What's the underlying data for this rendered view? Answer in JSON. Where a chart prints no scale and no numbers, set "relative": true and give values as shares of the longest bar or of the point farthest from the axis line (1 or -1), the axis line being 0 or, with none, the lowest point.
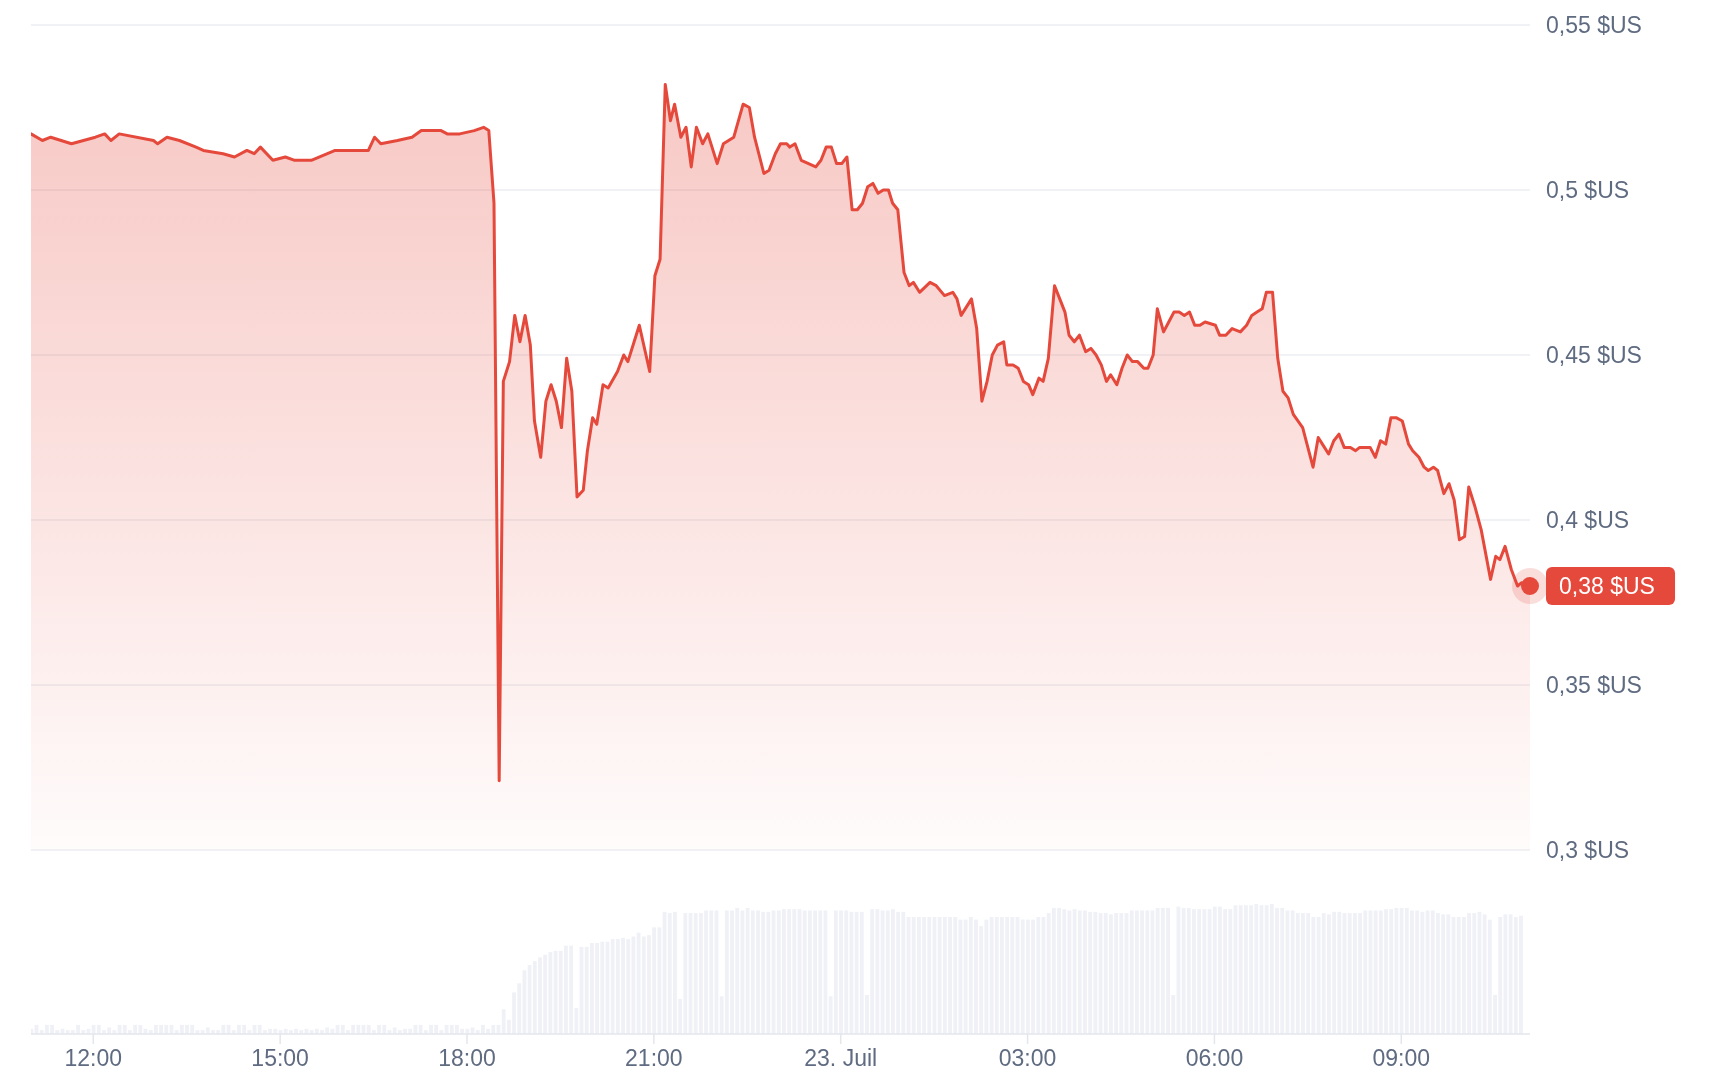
{
  "chart_data": [
    {
      "type": "area",
      "color": "#e5493c",
      "grid": "y",
      "tick_labels": "y",
      "xlim": [
        "--07-22T11:00",
        "--07-23T11:04"
      ],
      "ylim": [
        0.3,
        0.55
      ],
      "yticks": [
        {
          "value": 0.3,
          "label": "0,3 $US"
        },
        {
          "value": 0.35,
          "label": "0,35 $US"
        },
        {
          "value": 0.4,
          "label": "0,4 $US"
        },
        {
          "value": 0.45,
          "label": "0,45 $US"
        },
        {
          "value": 0.5,
          "label": "0,5 $US"
        },
        {
          "value": 0.55,
          "label": "0,55 $US"
        }
      ],
      "annotations": [
        {
          "text": "0,38 $US",
          "x": "--07-23T11:04",
          "y": 0.38
        }
      ],
      "x": [
        "--07-22T11:00",
        "--07-22T11:11",
        "--07-22T11:19",
        "--07-22T11:39",
        "--07-22T12:02",
        "--07-22T12:11",
        "--07-22T12:17",
        "--07-22T12:25",
        "--07-22T12:58",
        "--07-22T13:02",
        "--07-22T13:11",
        "--07-22T13:23",
        "--07-22T13:39",
        "--07-22T13:46",
        "--07-22T14:05",
        "--07-22T14:16",
        "--07-22T14:28",
        "--07-22T14:35",
        "--07-22T14:41",
        "--07-22T14:53",
        "--07-22T15:05",
        "--07-22T15:14",
        "--07-22T15:30",
        "--07-22T15:53",
        "--07-22T16:25",
        "--07-22T16:31",
        "--07-22T16:37",
        "--07-22T16:53",
        "--07-22T17:07",
        "--07-22T17:16",
        "--07-22T17:25",
        "--07-22T17:35",
        "--07-22T17:41",
        "--07-22T17:53",
        "--07-22T18:07",
        "--07-22T18:16",
        "--07-22T18:21",
        "--07-22T18:26",
        "--07-22T18:31",
        "--07-22T18:35",
        "--07-22T18:41",
        "--07-22T18:46",
        "--07-22T18:51",
        "--07-22T18:56",
        "--07-22T19:01",
        "--07-22T19:05",
        "--07-22T19:11",
        "--07-22T19:16",
        "--07-22T19:21",
        "--07-22T19:26",
        "--07-22T19:31",
        "--07-22T19:36",
        "--07-22T19:41",
        "--07-22T19:46",
        "--07-22T19:52",
        "--07-22T19:56",
        "--07-22T20:01",
        "--07-22T20:05",
        "--07-22T20:11",
        "--07-22T20:16",
        "--07-22T20:25",
        "--07-22T20:31",
        "--07-22T20:35",
        "--07-22T20:41",
        "--07-22T20:46",
        "--07-22T20:56",
        "--07-22T21:01",
        "--07-22T21:06",
        "--07-22T21:11",
        "--07-22T21:16",
        "--07-22T21:20",
        "--07-22T21:26",
        "--07-22T21:31",
        "--07-22T21:36",
        "--07-22T21:41",
        "--07-22T21:47",
        "--07-22T21:52",
        "--07-22T22:01",
        "--07-22T22:07",
        "--07-22T22:12",
        "--07-22T22:17",
        "--07-22T22:26",
        "--07-22T22:32",
        "--07-22T22:37",
        "--07-22T22:46",
        "--07-22T22:51",
        "--07-22T22:57",
        "--07-22T23:02",
        "--07-22T23:08",
        "--07-22T23:11",
        "--07-22T23:16",
        "--07-22T23:22",
        "--07-22T23:29",
        "--07-22T23:36",
        "--07-22T23:41",
        "--07-22T23:46",
        "--07-22T23:51",
        "--07-22T23:56",
        "--07-23T00:01",
        "--07-23T00:06",
        "--07-23T00:11",
        "--07-23T00:16",
        "--07-23T00:21",
        "--07-23T00:26",
        "--07-23T00:31",
        "--07-23T00:36",
        "--07-23T00:41",
        "--07-23T00:46",
        "--07-23T00:50",
        "--07-23T00:55",
        "--07-23T01:01",
        "--07-23T01:06",
        "--07-23T01:10",
        "--07-23T01:16",
        "--07-23T01:26",
        "--07-23T01:32",
        "--07-23T01:40",
        "--07-23T01:48",
        "--07-23T01:52",
        "--07-23T01:56",
        "--07-23T02:06",
        "--07-23T02:11",
        "--07-23T02:16",
        "--07-23T02:21",
        "--07-23T02:26",
        "--07-23T02:31",
        "--07-23T02:37",
        "--07-23T02:40",
        "--07-23T02:46",
        "--07-23T02:51",
        "--07-23T02:56",
        "--07-23T03:01",
        "--07-23T03:05",
        "--07-23T03:11",
        "--07-23T03:15",
        "--07-23T03:20",
        "--07-23T03:26",
        "--07-23T03:31",
        "--07-23T03:36",
        "--07-23T03:40",
        "--07-23T03:45",
        "--07-23T03:50",
        "--07-23T03:56",
        "--07-23T04:01",
        "--07-23T04:06",
        "--07-23T04:11",
        "--07-23T04:16",
        "--07-23T04:20",
        "--07-23T04:26",
        "--07-23T04:31",
        "--07-23T04:36",
        "--07-23T04:41",
        "--07-23T04:46",
        "--07-23T04:52",
        "--07-23T04:56",
        "--07-23T05:01",
        "--07-23T05:05",
        "--07-23T05:11",
        "--07-23T05:16",
        "--07-23T05:21",
        "--07-23T05:26",
        "--07-23T05:31",
        "--07-23T05:36",
        "--07-23T05:41",
        "--07-23T05:46",
        "--07-23T05:51",
        "--07-23T06:01",
        "--07-23T06:05",
        "--07-23T06:11",
        "--07-23T06:17",
        "--07-23T06:25",
        "--07-23T06:31",
        "--07-23T06:36",
        "--07-23T06:41",
        "--07-23T06:46",
        "--07-23T06:50",
        "--07-23T06:56",
        "--07-23T07:01",
        "--07-23T07:06",
        "--07-23T07:11",
        "--07-23T07:16",
        "--07-23T07:25",
        "--07-23T07:30",
        "--07-23T07:35",
        "--07-23T07:40",
        "--07-23T07:46",
        "--07-23T07:50",
        "--07-23T07:55",
        "--07-23T08:00",
        "--07-23T08:05",
        "--07-23T08:11",
        "--07-23T08:16",
        "--07-23T08:20",
        "--07-23T08:30",
        "--07-23T08:35",
        "--07-23T08:40",
        "--07-23T08:45",
        "--07-23T08:50",
        "--07-23T08:55",
        "--07-23T09:01",
        "--07-23T09:07",
        "--07-23T09:11",
        "--07-23T09:17",
        "--07-23T09:22",
        "--07-23T09:26",
        "--07-23T09:31",
        "--07-23T09:35",
        "--07-23T09:41",
        "--07-23T09:46",
        "--07-23T09:51",
        "--07-23T09:56",
        "--07-23T10:01",
        "--07-23T10:05",
        "--07-23T10:11",
        "--07-23T10:17",
        "--07-23T10:26",
        "--07-23T10:31",
        "--07-23T10:35",
        "--07-23T10:40",
        "--07-23T10:46",
        "--07-23T10:52",
        "--07-23T10:56",
        "--07-23T11:04"
      ],
      "values": [
        0.517,
        0.515,
        0.516,
        0.514,
        0.516,
        0.517,
        0.515,
        0.517,
        0.515,
        0.514,
        0.516,
        0.515,
        0.513,
        0.512,
        0.511,
        0.51,
        0.512,
        0.511,
        0.513,
        0.509,
        0.51,
        0.509,
        0.509,
        0.512,
        0.512,
        0.516,
        0.514,
        0.515,
        0.516,
        0.518,
        0.518,
        0.518,
        0.517,
        0.517,
        0.518,
        0.519,
        0.518,
        0.496,
        0.321,
        0.442,
        0.448,
        0.462,
        0.454,
        0.462,
        0.453,
        0.43,
        0.419,
        0.436,
        0.441,
        0.436,
        0.428,
        0.449,
        0.439,
        0.407,
        0.409,
        0.421,
        0.431,
        0.429,
        0.441,
        0.44,
        0.445,
        0.45,
        0.448,
        0.454,
        0.459,
        0.445,
        0.474,
        0.479,
        0.532,
        0.521,
        0.526,
        0.516,
        0.519,
        0.507,
        0.519,
        0.514,
        0.517,
        0.508,
        0.514,
        0.515,
        0.516,
        0.526,
        0.525,
        0.516,
        0.505,
        0.506,
        0.511,
        0.514,
        0.514,
        0.513,
        0.514,
        0.509,
        0.508,
        0.507,
        0.509,
        0.513,
        0.513,
        0.508,
        0.508,
        0.51,
        0.494,
        0.494,
        0.496,
        0.501,
        0.502,
        0.499,
        0.5,
        0.5,
        0.496,
        0.494,
        0.475,
        0.471,
        0.472,
        0.469,
        0.472,
        0.471,
        0.468,
        0.469,
        0.467,
        0.462,
        0.467,
        0.458,
        0.436,
        0.442,
        0.45,
        0.453,
        0.454,
        0.447,
        0.447,
        0.446,
        0.442,
        0.441,
        0.438,
        0.443,
        0.442,
        0.449,
        0.471,
        0.467,
        0.463,
        0.456,
        0.454,
        0.456,
        0.451,
        0.452,
        0.45,
        0.447,
        0.442,
        0.444,
        0.441,
        0.446,
        0.45,
        0.448,
        0.448,
        0.446,
        0.446,
        0.45,
        0.464,
        0.457,
        0.46,
        0.463,
        0.463,
        0.462,
        0.463,
        0.459,
        0.459,
        0.46,
        0.459,
        0.456,
        0.456,
        0.458,
        0.457,
        0.459,
        0.462,
        0.463,
        0.464,
        0.469,
        0.469,
        0.449,
        0.439,
        0.437,
        0.432,
        0.428,
        0.422,
        0.416,
        0.425,
        0.422,
        0.42,
        0.424,
        0.426,
        0.422,
        0.422,
        0.421,
        0.422,
        0.422,
        0.419,
        0.424,
        0.423,
        0.431,
        0.431,
        0.43,
        0.423,
        0.421,
        0.419,
        0.416,
        0.415,
        0.416,
        0.415,
        0.408,
        0.411,
        0.406,
        0.394,
        0.395,
        0.41,
        0.404,
        0.397,
        0.382,
        0.389,
        0.388,
        0.392,
        0.385,
        0.38,
        0.381,
        0.38
      ]
    },
    {
      "type": "bar",
      "color": "#eff1f6",
      "relative": true,
      "tick_labels": "x",
      "xlim": [
        "--07-22T11:00",
        "--07-23T11:04"
      ],
      "xticks": [
        {
          "value": "--07-22T12:00",
          "label": "12:00"
        },
        {
          "value": "--07-22T15:00",
          "label": "15:00"
        },
        {
          "value": "--07-22T18:00",
          "label": "18:00"
        },
        {
          "value": "--07-22T21:00",
          "label": "21:00"
        },
        {
          "value": "--07-23T00:00",
          "label": "23. Juil"
        },
        {
          "value": "--07-23T03:00",
          "label": "03:00"
        },
        {
          "value": "--07-23T06:00",
          "label": "06:00"
        },
        {
          "value": "--07-23T09:00",
          "label": "09:00"
        }
      ],
      "x": [
        "--07-22T11:00",
        "--07-22T11:05",
        "--07-22T11:10",
        "--07-22T11:15",
        "--07-22T11:20",
        "--07-22T11:25",
        "--07-22T11:30",
        "--07-22T11:35",
        "--07-22T11:40",
        "--07-22T11:45",
        "--07-22T11:50",
        "--07-22T11:55",
        "--07-22T12:00",
        "--07-22T12:05",
        "--07-22T12:10",
        "--07-22T12:15",
        "--07-22T12:20",
        "--07-22T12:25",
        "--07-22T12:30",
        "--07-22T12:35",
        "--07-22T12:40",
        "--07-22T12:45",
        "--07-22T12:50",
        "--07-22T12:55",
        "--07-22T13:00",
        "--07-22T13:05",
        "--07-22T13:10",
        "--07-22T13:15",
        "--07-22T13:20",
        "--07-22T13:25",
        "--07-22T13:30",
        "--07-22T13:35",
        "--07-22T13:40",
        "--07-22T13:45",
        "--07-22T13:50",
        "--07-22T13:55",
        "--07-22T14:00",
        "--07-22T14:05",
        "--07-22T14:10",
        "--07-22T14:15",
        "--07-22T14:20",
        "--07-22T14:25",
        "--07-22T14:30",
        "--07-22T14:35",
        "--07-22T14:40",
        "--07-22T14:45",
        "--07-22T14:50",
        "--07-22T14:55",
        "--07-22T15:00",
        "--07-22T15:05",
        "--07-22T15:10",
        "--07-22T15:15",
        "--07-22T15:20",
        "--07-22T15:25",
        "--07-22T15:30",
        "--07-22T15:35",
        "--07-22T15:40",
        "--07-22T15:45",
        "--07-22T15:50",
        "--07-22T15:55",
        "--07-22T16:00",
        "--07-22T16:05",
        "--07-22T16:10",
        "--07-22T16:15",
        "--07-22T16:20",
        "--07-22T16:25",
        "--07-22T16:30",
        "--07-22T16:35",
        "--07-22T16:40",
        "--07-22T16:45",
        "--07-22T16:50",
        "--07-22T16:55",
        "--07-22T17:00",
        "--07-22T17:05",
        "--07-22T17:10",
        "--07-22T17:15",
        "--07-22T17:20",
        "--07-22T17:25",
        "--07-22T17:30",
        "--07-22T17:35",
        "--07-22T17:40",
        "--07-22T17:45",
        "--07-22T17:50",
        "--07-22T17:55",
        "--07-22T18:00",
        "--07-22T18:05",
        "--07-22T18:10",
        "--07-22T18:15",
        "--07-22T18:20",
        "--07-22T18:25",
        "--07-22T18:30",
        "--07-22T18:35",
        "--07-22T18:40",
        "--07-22T18:45",
        "--07-22T18:50",
        "--07-22T18:55",
        "--07-22T19:00",
        "--07-22T19:05",
        "--07-22T19:10",
        "--07-22T19:15",
        "--07-22T19:20",
        "--07-22T19:25",
        "--07-22T19:30",
        "--07-22T19:35",
        "--07-22T19:40",
        "--07-22T19:45",
        "--07-22T19:50",
        "--07-22T19:55",
        "--07-22T20:00",
        "--07-22T20:05",
        "--07-22T20:10",
        "--07-22T20:15",
        "--07-22T20:20",
        "--07-22T20:25",
        "--07-22T20:30",
        "--07-22T20:35",
        "--07-22T20:40",
        "--07-22T20:45",
        "--07-22T20:50",
        "--07-22T20:55",
        "--07-22T21:00",
        "--07-22T21:05",
        "--07-22T21:10",
        "--07-22T21:15",
        "--07-22T21:20",
        "--07-22T21:25",
        "--07-22T21:30",
        "--07-22T21:35",
        "--07-22T21:40",
        "--07-22T21:45",
        "--07-22T21:50",
        "--07-22T21:55",
        "--07-22T22:00",
        "--07-22T22:05",
        "--07-22T22:10",
        "--07-22T22:15",
        "--07-22T22:20",
        "--07-22T22:25",
        "--07-22T22:30",
        "--07-22T22:35",
        "--07-22T22:40",
        "--07-22T22:45",
        "--07-22T22:50",
        "--07-22T22:55",
        "--07-22T23:00",
        "--07-22T23:05",
        "--07-22T23:10",
        "--07-22T23:15",
        "--07-22T23:20",
        "--07-22T23:25",
        "--07-22T23:30",
        "--07-22T23:35",
        "--07-22T23:40",
        "--07-22T23:45",
        "--07-22T23:50",
        "--07-22T23:55",
        "--07-23T00:00",
        "--07-23T00:05",
        "--07-23T00:10",
        "--07-23T00:15",
        "--07-23T00:20",
        "--07-23T00:25",
        "--07-23T00:30",
        "--07-23T00:35",
        "--07-23T00:40",
        "--07-23T00:45",
        "--07-23T00:50",
        "--07-23T00:55",
        "--07-23T01:00",
        "--07-23T01:05",
        "--07-23T01:10",
        "--07-23T01:15",
        "--07-23T01:20",
        "--07-23T01:25",
        "--07-23T01:30",
        "--07-23T01:35",
        "--07-23T01:40",
        "--07-23T01:45",
        "--07-23T01:50",
        "--07-23T01:55",
        "--07-23T02:00",
        "--07-23T02:05",
        "--07-23T02:10",
        "--07-23T02:15",
        "--07-23T02:20",
        "--07-23T02:25",
        "--07-23T02:30",
        "--07-23T02:35",
        "--07-23T02:40",
        "--07-23T02:45",
        "--07-23T02:50",
        "--07-23T02:55",
        "--07-23T03:00",
        "--07-23T03:05",
        "--07-23T03:10",
        "--07-23T03:15",
        "--07-23T03:20",
        "--07-23T03:25",
        "--07-23T03:30",
        "--07-23T03:35",
        "--07-23T03:40",
        "--07-23T03:45",
        "--07-23T03:50",
        "--07-23T03:55",
        "--07-23T04:00",
        "--07-23T04:05",
        "--07-23T04:10",
        "--07-23T04:15",
        "--07-23T04:20",
        "--07-23T04:25",
        "--07-23T04:30",
        "--07-23T04:35",
        "--07-23T04:40",
        "--07-23T04:45",
        "--07-23T04:50",
        "--07-23T04:55",
        "--07-23T05:00",
        "--07-23T05:05",
        "--07-23T05:10",
        "--07-23T05:15",
        "--07-23T05:20",
        "--07-23T05:25",
        "--07-23T05:30",
        "--07-23T05:35",
        "--07-23T05:40",
        "--07-23T05:45",
        "--07-23T05:50",
        "--07-23T05:55",
        "--07-23T06:00",
        "--07-23T06:05",
        "--07-23T06:10",
        "--07-23T06:15",
        "--07-23T06:20",
        "--07-23T06:25",
        "--07-23T06:30",
        "--07-23T06:35",
        "--07-23T06:40",
        "--07-23T06:45",
        "--07-23T06:50",
        "--07-23T06:55",
        "--07-23T07:00",
        "--07-23T07:05",
        "--07-23T07:10",
        "--07-23T07:15",
        "--07-23T07:20",
        "--07-23T07:25",
        "--07-23T07:30",
        "--07-23T07:35",
        "--07-23T07:40",
        "--07-23T07:45",
        "--07-23T07:50",
        "--07-23T07:55",
        "--07-23T08:00",
        "--07-23T08:05",
        "--07-23T08:10",
        "--07-23T08:15",
        "--07-23T08:20",
        "--07-23T08:25",
        "--07-23T08:30",
        "--07-23T08:35",
        "--07-23T08:40",
        "--07-23T08:45",
        "--07-23T08:50",
        "--07-23T08:55",
        "--07-23T09:00",
        "--07-23T09:05",
        "--07-23T09:10",
        "--07-23T09:15",
        "--07-23T09:20",
        "--07-23T09:25",
        "--07-23T09:30",
        "--07-23T09:35",
        "--07-23T09:40",
        "--07-23T09:45",
        "--07-23T09:50",
        "--07-23T09:55",
        "--07-23T10:00",
        "--07-23T10:05",
        "--07-23T10:10",
        "--07-23T10:15",
        "--07-23T10:20",
        "--07-23T10:25",
        "--07-23T10:30",
        "--07-23T10:35",
        "--07-23T10:40",
        "--07-23T10:45",
        "--07-23T10:50",
        "--07-23T10:55"
      ],
      "values": [
        0.04,
        0.07,
        0.03,
        0.07,
        0.07,
        0.03,
        0.04,
        0.03,
        0.03,
        0.07,
        0.03,
        0.04,
        0.07,
        0.07,
        0.03,
        0.05,
        0.03,
        0.07,
        0.07,
        0.03,
        0.07,
        0.07,
        0.04,
        0.03,
        0.07,
        0.07,
        0.07,
        0.07,
        0.03,
        0.07,
        0.07,
        0.07,
        0.03,
        0.03,
        0.05,
        0.03,
        0.03,
        0.07,
        0.07,
        0.03,
        0.07,
        0.07,
        0.03,
        0.07,
        0.07,
        0.03,
        0.04,
        0.04,
        0.03,
        0.04,
        0.03,
        0.04,
        0.03,
        0.04,
        0.03,
        0.04,
        0.03,
        0.05,
        0.04,
        0.07,
        0.07,
        0.03,
        0.07,
        0.07,
        0.07,
        0.07,
        0.03,
        0.07,
        0.07,
        0.03,
        0.05,
        0.03,
        0.04,
        0.04,
        0.07,
        0.07,
        0.03,
        0.07,
        0.07,
        0.03,
        0.07,
        0.07,
        0.07,
        0.04,
        0.04,
        0.05,
        0.03,
        0.07,
        0.04,
        0.07,
        0.07,
        0.19,
        0.11,
        0.32,
        0.39,
        0.49,
        0.53,
        0.56,
        0.59,
        0.61,
        0.63,
        0.64,
        0.64,
        0.68,
        0.68,
        0.2,
        0.67,
        0.67,
        0.7,
        0.7,
        0.71,
        0.71,
        0.73,
        0.73,
        0.74,
        0.73,
        0.75,
        0.78,
        0.75,
        0.76,
        0.82,
        0.82,
        0.94,
        0.93,
        0.94,
        0.27,
        0.93,
        0.93,
        0.93,
        0.93,
        0.95,
        0.95,
        0.95,
        0.29,
        0.95,
        0.95,
        0.97,
        0.95,
        0.97,
        0.95,
        0.95,
        0.94,
        0.94,
        0.95,
        0.95,
        0.96,
        0.96,
        0.96,
        0.96,
        0.95,
        0.95,
        0.95,
        0.95,
        0.95,
        0.29,
        0.95,
        0.95,
        0.95,
        0.94,
        0.94,
        0.94,
        0.3,
        0.96,
        0.96,
        0.95,
        0.95,
        0.96,
        0.94,
        0.94,
        0.9,
        0.9,
        0.9,
        0.9,
        0.9,
        0.9,
        0.9,
        0.9,
        0.9,
        0.9,
        0.88,
        0.88,
        0.9,
        0.88,
        0.83,
        0.88,
        0.9,
        0.9,
        0.9,
        0.9,
        0.9,
        0.9,
        0.88,
        0.88,
        0.88,
        0.9,
        0.9,
        0.93,
        0.97,
        0.97,
        0.96,
        0.95,
        0.96,
        0.95,
        0.95,
        0.94,
        0.94,
        0.93,
        0.93,
        0.92,
        0.93,
        0.93,
        0.93,
        0.95,
        0.95,
        0.95,
        0.95,
        0.95,
        0.97,
        0.97,
        0.97,
        0.3,
        0.98,
        0.97,
        0.97,
        0.96,
        0.96,
        0.96,
        0.96,
        0.98,
        0.98,
        0.96,
        0.96,
        0.99,
        0.99,
        0.99,
        0.99,
        1,
        0.99,
        0.99,
        1,
        0.97,
        0.97,
        0.95,
        0.95,
        0.93,
        0.93,
        0.93,
        0.9,
        0.9,
        0.93,
        0.92,
        0.94,
        0.94,
        0.93,
        0.93,
        0.93,
        0.93,
        0.95,
        0.95,
        0.95,
        0.95,
        0.96,
        0.96,
        0.97,
        0.97,
        0.97,
        0.95,
        0.95,
        0.94,
        0.95,
        0.95,
        0.93,
        0.92,
        0.92,
        0.9,
        0.9,
        0.9,
        0.93,
        0.93,
        0.94,
        0.92,
        0.88,
        0.3,
        0.9,
        0.92,
        0.92,
        0.9,
        0.91
      ]
    }
  ]
}
